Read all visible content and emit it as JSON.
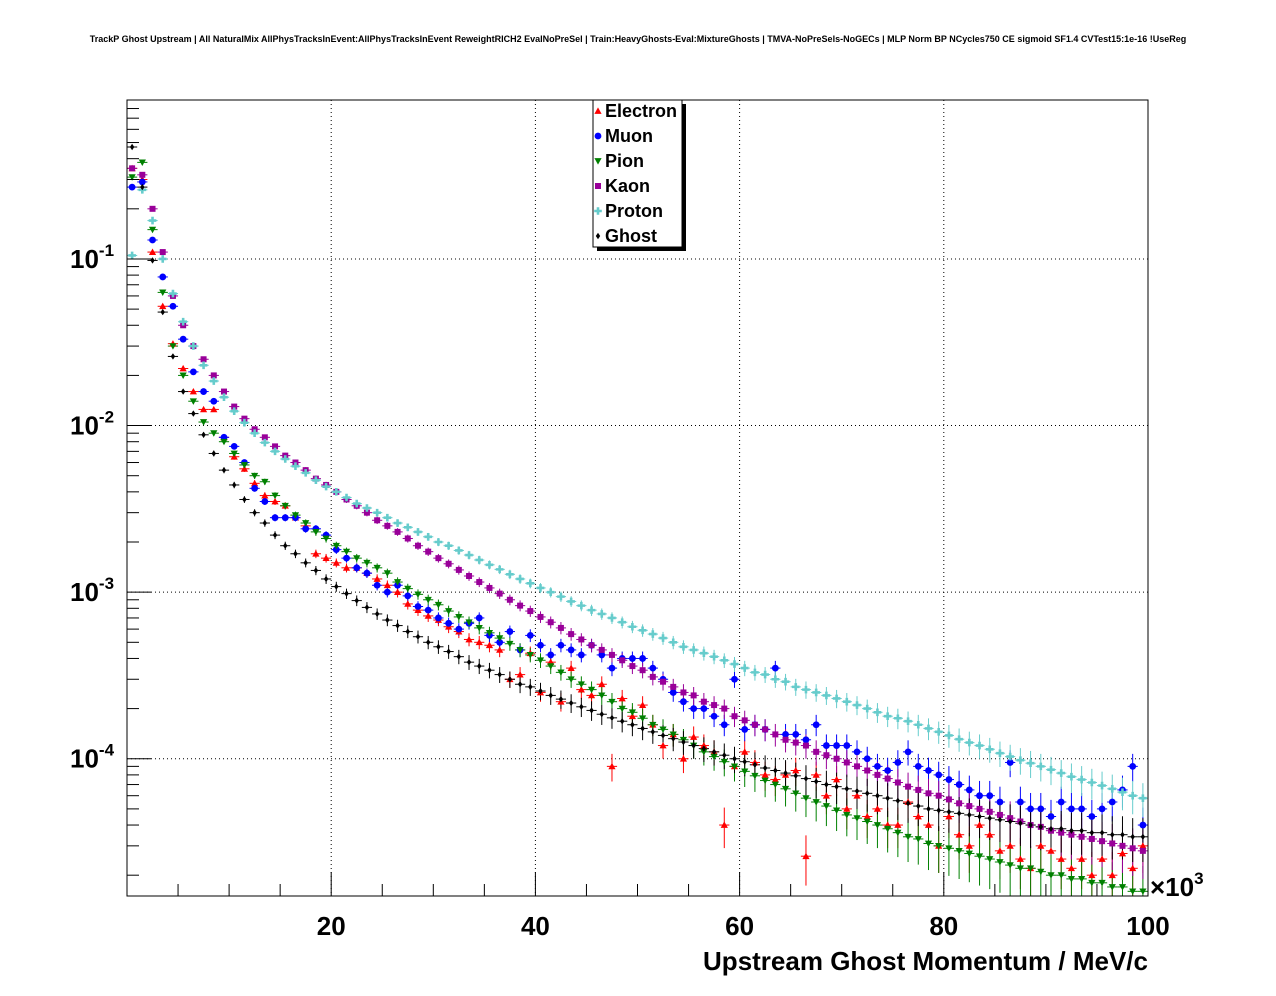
{
  "chart_data": {
    "type": "scatter",
    "title": "TrackP Ghost Upstream | All NaturalMix AllPhysTracksInEvent:AllPhysTracksInEvent ReweightRICH2 EvalNoPreSel | Train:HeavyGhosts-Eval:MixtureGhosts | TMVA-NoPreSels-NoGECs | MLP Norm BP NCycles750 CE sigmoid SF1.4 CVTest15:1e-16 !UseReg",
    "xlabel": "Upstream Ghost Momentum / MeV/c",
    "x_multiplier_base": "×10",
    "x_multiplier_exp": "3",
    "xlim": [
      0,
      100000
    ],
    "ylim": [
      1.5e-05,
      0.9
    ],
    "yscale": "log",
    "grid": true,
    "legend_position": "top-center",
    "x_ticks": [
      {
        "value": 20000,
        "label": "20"
      },
      {
        "value": 40000,
        "label": "40"
      },
      {
        "value": 60000,
        "label": "60"
      },
      {
        "value": 80000,
        "label": "80"
      },
      {
        "value": 100000,
        "label": "100"
      }
    ],
    "y_ticks": [
      {
        "value": 0.1,
        "base": "10",
        "exp": "-1"
      },
      {
        "value": 0.01,
        "base": "10",
        "exp": "-2"
      },
      {
        "value": 0.001,
        "base": "10",
        "exp": "-3"
      },
      {
        "value": 0.0001,
        "base": "10",
        "exp": "-4"
      }
    ],
    "x_bin_width": 1000,
    "x_first_bin_center": 500,
    "series": [
      {
        "name": "Electron",
        "marker": "triangle-up",
        "color": "#ff0000",
        "values": [
          0.35,
          0.3,
          0.11,
          0.052,
          0.031,
          0.022,
          0.016,
          0.0125,
          0.0125,
          0.0085,
          0.0065,
          0.0055,
          0.0045,
          0.0038,
          0.0035,
          0.0033,
          0.0028,
          0.0025,
          0.0017,
          0.0016,
          0.0015,
          0.0014,
          0.0014,
          0.0013,
          0.0012,
          0.0011,
          0.001,
          0.00085,
          0.00078,
          0.00072,
          0.00068,
          0.00062,
          0.00058,
          0.00052,
          0.0005,
          0.00048,
          0.00045,
          0.0003,
          0.00032,
          0.00043,
          0.00025,
          0.00038,
          0.00022,
          0.00035,
          0.00026,
          0.00024,
          0.00028,
          9e-05,
          0.00023,
          0.00018,
          0.00021,
          0.00016,
          0.00012,
          0.00014,
          0.0001,
          0.000135,
          0.00012,
          0.00011,
          4e-05,
          9e-05,
          0.00011,
          9.5e-05,
          8e-05,
          7.5e-05,
          8e-05,
          8.5e-05,
          2.6e-05,
          8e-05,
          6e-05,
          7.5e-05,
          5e-05,
          6e-05,
          4.5e-05,
          5e-05,
          4e-05,
          4e-05,
          5.5e-05,
          4.5e-05,
          4e-05,
          3e-05,
          4.5e-05,
          3.5e-05,
          3e-05,
          4e-05,
          3.5e-05,
          2.8e-05,
          3e-05,
          2.5e-05,
          2.2e-05,
          3e-05,
          2.8e-05,
          2.5e-05,
          2.2e-05,
          2.5e-05,
          2e-05,
          2.5e-05,
          2e-05,
          2.7e-05,
          2.2e-05,
          3e-05
        ]
      },
      {
        "name": "Muon",
        "marker": "circle",
        "color": "#0000ff",
        "values": [
          0.27,
          0.29,
          0.13,
          0.078,
          0.052,
          0.033,
          0.021,
          0.016,
          0.014,
          0.0085,
          0.0075,
          0.006,
          0.0042,
          0.0035,
          0.0028,
          0.0028,
          0.0028,
          0.0024,
          0.0024,
          0.0022,
          0.0018,
          0.0016,
          0.0014,
          0.0013,
          0.0011,
          0.001,
          0.0011,
          0.00095,
          0.00082,
          0.00078,
          0.0007,
          0.00065,
          0.0006,
          0.00065,
          0.0007,
          0.00055,
          0.0005,
          0.00058,
          0.00045,
          0.00055,
          0.00048,
          0.00042,
          0.00048,
          0.00045,
          0.00042,
          0.00048,
          0.00042,
          0.00035,
          0.0004,
          0.0004,
          0.0004,
          0.00035,
          0.0003,
          0.00025,
          0.00022,
          0.0002,
          0.0002,
          0.00018,
          0.00016,
          0.0003,
          0.00015,
          0.00016,
          0.00015,
          0.00035,
          0.00014,
          0.00014,
          0.00013,
          0.00016,
          0.00012,
          0.00012,
          0.00012,
          0.00011,
          0.0001,
          9e-05,
          8.5e-05,
          9.5e-05,
          0.00011,
          9e-05,
          8.5e-05,
          8e-05,
          7.5e-05,
          7e-05,
          6.5e-05,
          6e-05,
          6e-05,
          5.5e-05,
          9.5e-05,
          5.5e-05,
          5e-05,
          5e-05,
          4.5e-05,
          5.5e-05,
          5e-05,
          5e-05,
          4.5e-05,
          5e-05,
          5.5e-05,
          6.5e-05,
          9e-05,
          4e-05
        ]
      },
      {
        "name": "Pion",
        "marker": "triangle-down",
        "color": "#008000",
        "values": [
          0.31,
          0.38,
          0.15,
          0.063,
          0.03,
          0.02,
          0.014,
          0.0105,
          0.009,
          0.008,
          0.0068,
          0.0058,
          0.005,
          0.0046,
          0.0038,
          0.0033,
          0.0029,
          0.0026,
          0.0023,
          0.0021,
          0.0019,
          0.00175,
          0.0016,
          0.0015,
          0.0014,
          0.0013,
          0.00115,
          0.00105,
          0.00097,
          0.0009,
          0.00084,
          0.00077,
          0.00071,
          0.00066,
          0.00061,
          0.00057,
          0.00053,
          0.00049,
          0.00045,
          0.00042,
          0.00039,
          0.00036,
          0.00033,
          0.0003,
          0.00028,
          0.00026,
          0.00024,
          0.00022,
          0.0002,
          0.00019,
          0.000175,
          0.00016,
          0.00015,
          0.00014,
          0.00013,
          0.00012,
          0.00011,
          0.000103,
          9.6e-05,
          9e-05,
          8.4e-05,
          7.9e-05,
          7.4e-05,
          7e-05,
          6.6e-05,
          6.2e-05,
          5.8e-05,
          5.5e-05,
          5.2e-05,
          4.9e-05,
          4.6e-05,
          4.4e-05,
          4.2e-05,
          4e-05,
          3.8e-05,
          3.6e-05,
          3.4e-05,
          3.3e-05,
          3.1e-05,
          3e-05,
          2.9e-05,
          2.8e-05,
          2.7e-05,
          2.6e-05,
          2.5e-05,
          2.4e-05,
          2.3e-05,
          2.2e-05,
          2.2e-05,
          2.1e-05,
          2e-05,
          2e-05,
          1.9e-05,
          1.9e-05,
          1.8e-05,
          1.8e-05,
          1.7e-05,
          1.7e-05,
          1.6e-05,
          1.6e-05
        ]
      },
      {
        "name": "Kaon",
        "marker": "square",
        "color": "#990099",
        "values": [
          0.35,
          0.32,
          0.2,
          0.11,
          0.06,
          0.04,
          0.03,
          0.025,
          0.02,
          0.016,
          0.013,
          0.011,
          0.0095,
          0.0085,
          0.0075,
          0.0066,
          0.006,
          0.0054,
          0.0048,
          0.0044,
          0.004,
          0.0036,
          0.0033,
          0.003,
          0.0027,
          0.0025,
          0.0023,
          0.0021,
          0.0019,
          0.00175,
          0.0016,
          0.00148,
          0.00136,
          0.00125,
          0.00115,
          0.00106,
          0.00098,
          0.0009,
          0.00083,
          0.00077,
          0.00071,
          0.00066,
          0.00061,
          0.00056,
          0.00052,
          0.00048,
          0.00045,
          0.00042,
          0.00039,
          0.00036,
          0.00034,
          0.00031,
          0.00029,
          0.00027,
          0.00025,
          0.00024,
          0.00022,
          0.00021,
          0.0002,
          0.00018,
          0.00017,
          0.00016,
          0.00015,
          0.00014,
          0.00013,
          0.000125,
          0.00012,
          0.00011,
          0.000105,
          0.0001,
          9.5e-05,
          9e-05,
          8.5e-05,
          8e-05,
          7.6e-05,
          7.2e-05,
          6.8e-05,
          6.5e-05,
          6.2e-05,
          6e-05,
          5.7e-05,
          5.4e-05,
          5.2e-05,
          5e-05,
          4.8e-05,
          4.6e-05,
          4.4e-05,
          4.2e-05,
          4e-05,
          3.9e-05,
          3.7e-05,
          3.6e-05,
          3.5e-05,
          3.4e-05,
          3.3e-05,
          3.2e-05,
          3.1e-05,
          3e-05,
          2.9e-05,
          2.8e-05
        ]
      },
      {
        "name": "Proton",
        "marker": "cross",
        "color": "#66cccc",
        "values": [
          0.105,
          0.26,
          0.17,
          0.1,
          0.062,
          0.042,
          0.03,
          0.023,
          0.0185,
          0.0148,
          0.0122,
          0.0104,
          0.009,
          0.0079,
          0.007,
          0.0063,
          0.0057,
          0.0052,
          0.0047,
          0.0043,
          0.004,
          0.0037,
          0.0034,
          0.0032,
          0.003,
          0.0028,
          0.0026,
          0.00245,
          0.0023,
          0.00215,
          0.002,
          0.0019,
          0.00178,
          0.00167,
          0.00156,
          0.00146,
          0.00137,
          0.00128,
          0.0012,
          0.00113,
          0.00106,
          0.001,
          0.00094,
          0.00088,
          0.00083,
          0.00078,
          0.00074,
          0.0007,
          0.00066,
          0.00062,
          0.00059,
          0.00056,
          0.00053,
          0.0005,
          0.00047,
          0.00045,
          0.00043,
          0.00041,
          0.00039,
          0.00037,
          0.00035,
          0.00033,
          0.00032,
          0.0003,
          0.00029,
          0.00027,
          0.00026,
          0.00025,
          0.00024,
          0.00023,
          0.00022,
          0.00021,
          0.0002,
          0.00019,
          0.00018,
          0.000175,
          0.000168,
          0.00016,
          0.000152,
          0.000145,
          0.000138,
          0.000131,
          0.000125,
          0.00012,
          0.000114,
          0.000108,
          0.000103,
          9.8e-05,
          9.4e-05,
          9e-05,
          8.6e-05,
          8.2e-05,
          7.8e-05,
          7.5e-05,
          7.2e-05,
          6.9e-05,
          6.6e-05,
          6.3e-05,
          6e-05,
          5.8e-05
        ]
      },
      {
        "name": "Ghost",
        "marker": "diamond",
        "color": "#000000",
        "values": [
          0.47,
          0.27,
          0.098,
          0.048,
          0.026,
          0.016,
          0.0118,
          0.0088,
          0.0068,
          0.0054,
          0.0044,
          0.0036,
          0.003,
          0.0026,
          0.0022,
          0.0019,
          0.0017,
          0.0015,
          0.00135,
          0.0012,
          0.00108,
          0.00098,
          0.00089,
          0.00081,
          0.00074,
          0.00068,
          0.00063,
          0.00058,
          0.00054,
          0.0005,
          0.00047,
          0.00044,
          0.00041,
          0.00038,
          0.00036,
          0.00034,
          0.00032,
          0.0003,
          0.00028,
          0.00027,
          0.000255,
          0.00024,
          0.000228,
          0.000216,
          0.000205,
          0.000195,
          0.000185,
          0.000176,
          0.000168,
          0.00016,
          0.000152,
          0.000145,
          0.000138,
          0.000132,
          0.000126,
          0.00012,
          0.000115,
          0.00011,
          0.000105,
          0.0001,
          9.6e-05,
          9.2e-05,
          8.8e-05,
          8.5e-05,
          8.2e-05,
          7.9e-05,
          7.6e-05,
          7.3e-05,
          7e-05,
          6.8e-05,
          6.6e-05,
          6.4e-05,
          6.2e-05,
          6e-05,
          5.8e-05,
          5.6e-05,
          5.4e-05,
          5.2e-05,
          5e-05,
          4.9e-05,
          4.8e-05,
          4.7e-05,
          4.6e-05,
          4.5e-05,
          4.4e-05,
          4.3e-05,
          4.2e-05,
          4.1e-05,
          4e-05,
          3.9e-05,
          3.8e-05,
          3.8e-05,
          3.7e-05,
          3.7e-05,
          3.6e-05,
          3.6e-05,
          3.5e-05,
          3.5e-05,
          3.4e-05,
          3.4e-05
        ]
      }
    ]
  }
}
